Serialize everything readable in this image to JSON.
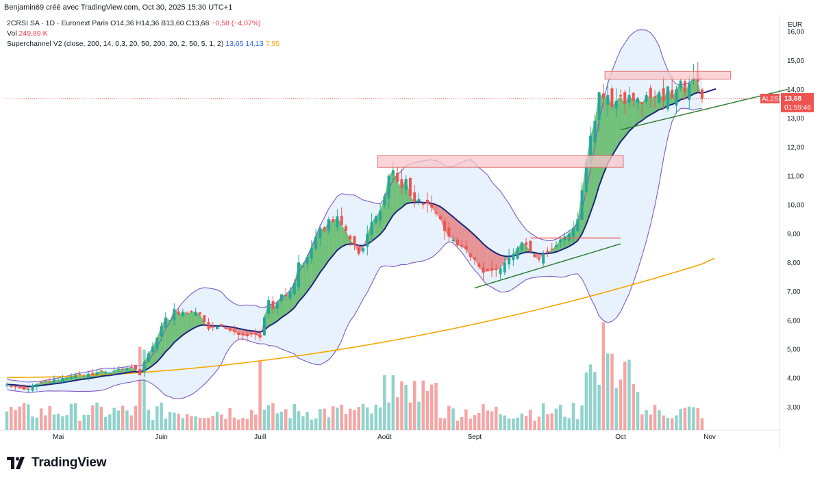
{
  "header": {
    "caption": "Benjamin69 créé avec TradingView.com, Oct 30, 2025 15:30 UTC+1"
  },
  "legend": {
    "symbol": "2CRSI SA · 1D · Euronext Paris",
    "ohlc": "O14,36  H14,36  B13,60  C13,68",
    "change": "−0,58 (−4,07%)",
    "vol_label": "Vol",
    "vol_value": "249,89 K",
    "indicator": "Superchannel V2 (close, 200, 14, 0,3, 20, 50, 200, 20, 2, 50, 5, 1, 2)",
    "ind_v1": "13,65",
    "ind_v2": "14,13",
    "ind_v3": "7,95"
  },
  "footer": {
    "brand": "TradingView"
  },
  "colors": {
    "up": "#26a69a",
    "down": "#ef5350",
    "fill_up": "#4caf50",
    "fill_down": "#e57373",
    "bb_line": "#7e57c2",
    "bb_fill": "#e3f0fb",
    "channel": "#1a237e",
    "ma200": "#f7a600",
    "vol_up": "#8fd3cc",
    "vol_down": "#f6a5a5",
    "zone_fill": "#f8c5ca",
    "zone_border": "#e57373",
    "trend": "#2e7d32"
  },
  "chart_data": {
    "type": "candlestick",
    "title": "2CRSI SA · 1D · Euronext Paris",
    "currency": "EUR",
    "ylim": [
      2.2,
      16.5
    ],
    "y_ticks": [
      "16,00",
      "15,00",
      "14,00",
      "13,00",
      "12,00",
      "11,00",
      "10,00",
      "9,00",
      "8,00",
      "7,00",
      "6,00",
      "5,00",
      "4,00",
      "3,00"
    ],
    "x_ticks": [
      "Mai",
      "Juin",
      "Juill",
      "Août",
      "Sept",
      "Oct",
      "Nov"
    ],
    "current": {
      "label": "AL2SI",
      "price": "13,68",
      "countdown": "01:59:46",
      "value": 13.68
    },
    "closes": [
      3.78,
      3.72,
      3.7,
      3.66,
      3.6,
      3.62,
      3.74,
      3.8,
      3.85,
      3.9,
      3.88,
      3.95,
      3.92,
      4.0,
      4.02,
      4.05,
      4.1,
      4.12,
      4.08,
      4.15,
      4.12,
      4.2,
      4.25,
      4.22,
      4.18,
      4.25,
      4.32,
      4.3,
      4.35,
      4.38,
      4.3,
      4.1,
      4.55,
      4.85,
      5.1,
      5.4,
      5.8,
      6.1,
      6.0,
      6.4,
      6.2,
      6.3,
      6.25,
      6.28,
      6.3,
      6.2,
      5.95,
      5.7,
      5.75,
      5.78,
      5.8,
      5.7,
      5.65,
      5.6,
      5.5,
      5.48,
      5.45,
      5.52,
      5.5,
      5.4,
      6.1,
      6.7,
      6.4,
      6.6,
      6.9,
      6.85,
      7.0,
      7.3,
      8.0,
      7.9,
      8.2,
      8.5,
      8.9,
      9.2,
      9.1,
      9.5,
      9.4,
      9.6,
      9.3,
      9.1,
      8.8,
      8.6,
      8.3,
      8.5,
      9.0,
      9.4,
      9.6,
      9.8,
      10.3,
      11.0,
      11.2,
      10.8,
      10.6,
      10.9,
      10.3,
      10.1,
      10.2,
      10.0,
      10.05,
      9.9,
      9.7,
      9.5,
      9.1,
      8.9,
      8.8,
      8.6,
      8.55,
      8.45,
      8.2,
      8.1,
      7.85,
      7.65,
      7.7,
      7.72,
      7.75,
      7.8,
      8.0,
      8.2,
      8.3,
      8.5,
      8.7,
      8.6,
      8.4,
      8.2,
      8.1,
      8.3,
      8.35,
      8.45,
      8.6,
      8.8,
      8.9,
      9.0,
      9.2,
      9.5,
      10.5,
      11.5,
      12.4,
      12.9,
      13.9,
      13.7,
      13.8,
      13.4,
      13.6,
      13.75,
      13.5,
      13.8,
      13.6,
      13.7,
      13.5,
      13.8,
      13.7,
      13.75,
      13.9,
      13.6,
      14.1,
      13.7,
      14.0,
      14.3,
      13.9,
      14.2,
      14.4,
      14.26,
      13.68
    ],
    "annotations": {
      "resistance_zones": [
        {
          "from_index": 87,
          "to_index": 143,
          "low": 11.3,
          "high": 11.7
        },
        {
          "from_index": 140,
          "to_index": 168,
          "low": 14.35,
          "high": 14.62
        }
      ],
      "trendlines": [
        {
          "from_index": 109,
          "from_value": 7.12,
          "to_index": 143,
          "to_value": 8.65
        },
        {
          "from_index": 143,
          "from_value": 12.6,
          "to_index": 174,
          "to_value": 14.0
        }
      ],
      "level_line": {
        "from_index": 122,
        "to_index": 143,
        "value": 8.85
      }
    }
  }
}
